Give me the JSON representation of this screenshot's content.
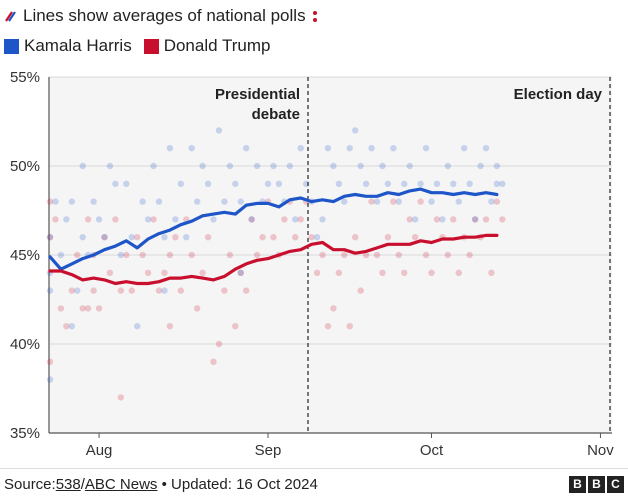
{
  "header": {
    "title": "Lines show averages of national polls"
  },
  "legend": {
    "harris": {
      "label": "Kamala Harris",
      "color": "#1e55c8"
    },
    "trump": {
      "label": "Donald Trump",
      "color": "#c8102e"
    }
  },
  "chart_data": {
    "type": "line",
    "title": "Lines show averages of national polls",
    "xlabel": "",
    "ylabel": "",
    "x_range_days": [
      0,
      102
    ],
    "x_ticks": [
      {
        "label": "Aug",
        "day": 9
      },
      {
        "label": "Sep",
        "day": 40
      },
      {
        "label": "Oct",
        "day": 70
      },
      {
        "label": "Nov",
        "day": 101
      }
    ],
    "ylim": [
      35,
      55
    ],
    "y_ticks": [
      "35%",
      "40%",
      "45%",
      "50%",
      "55%"
    ],
    "y_tick_values": [
      35,
      40,
      45,
      50,
      55
    ],
    "annotations": [
      {
        "label": "Presidential debate",
        "line1": "Presidential",
        "line2": "debate",
        "day": 49
      },
      {
        "label": "Election day",
        "line1": "Election day",
        "day": 105
      }
    ],
    "series": [
      {
        "name": "Kamala Harris",
        "color": "#1e55c8",
        "x": [
          0,
          2,
          4,
          6,
          8,
          10,
          12,
          14,
          16,
          18,
          20,
          22,
          24,
          26,
          28,
          30,
          32,
          34,
          36,
          38,
          40,
          42,
          44,
          46,
          48,
          50,
          52,
          54,
          56,
          58,
          60,
          62,
          64,
          66,
          68,
          70,
          72,
          74,
          76,
          78,
          80,
          82
        ],
        "values": [
          44.9,
          44.2,
          44.5,
          44.8,
          45.0,
          45.3,
          45.5,
          45.8,
          45.4,
          45.9,
          46.2,
          46.4,
          46.7,
          46.9,
          47.2,
          47.3,
          47.4,
          47.3,
          47.8,
          47.9,
          47.9,
          47.7,
          48.1,
          48.2,
          48.0,
          48.1,
          48.0,
          48.3,
          48.4,
          48.3,
          48.3,
          48.5,
          48.4,
          48.6,
          48.7,
          48.5,
          48.5,
          48.4,
          48.5,
          48.4,
          48.5,
          48.4
        ]
      },
      {
        "name": "Donald Trump",
        "color": "#c8102e",
        "x": [
          0,
          2,
          4,
          6,
          8,
          10,
          12,
          14,
          16,
          18,
          20,
          22,
          24,
          26,
          28,
          30,
          32,
          34,
          36,
          38,
          40,
          42,
          44,
          46,
          48,
          50,
          52,
          54,
          56,
          58,
          60,
          62,
          64,
          66,
          68,
          70,
          72,
          74,
          76,
          78,
          80,
          82
        ],
        "values": [
          44.1,
          44.1,
          43.9,
          43.6,
          43.7,
          43.6,
          43.4,
          43.5,
          43.4,
          43.4,
          43.5,
          43.7,
          43.7,
          43.8,
          43.7,
          43.6,
          43.8,
          44.2,
          44.5,
          44.7,
          44.8,
          45.0,
          45.2,
          45.3,
          45.6,
          45.7,
          45.3,
          45.3,
          45.1,
          45.2,
          45.4,
          45.6,
          45.6,
          45.6,
          45.8,
          45.7,
          45.9,
          45.9,
          46.0,
          46.0,
          46.1,
          46.1
        ]
      }
    ],
    "polls": {
      "harris": [
        [
          0,
          46
        ],
        [
          0,
          44
        ],
        [
          0,
          43
        ],
        [
          0,
          38
        ],
        [
          1,
          48
        ],
        [
          2,
          45
        ],
        [
          3,
          47
        ],
        [
          4,
          48
        ],
        [
          4,
          41
        ],
        [
          5,
          43
        ],
        [
          6,
          50
        ],
        [
          6,
          46
        ],
        [
          7,
          45
        ],
        [
          8,
          48
        ],
        [
          9,
          47
        ],
        [
          10,
          46
        ],
        [
          11,
          50
        ],
        [
          12,
          49
        ],
        [
          13,
          45
        ],
        [
          14,
          49
        ],
        [
          15,
          46
        ],
        [
          16,
          41
        ],
        [
          17,
          48
        ],
        [
          18,
          47
        ],
        [
          19,
          50
        ],
        [
          20,
          48
        ],
        [
          21,
          46
        ],
        [
          21,
          43
        ],
        [
          22,
          51
        ],
        [
          23,
          47
        ],
        [
          24,
          49
        ],
        [
          25,
          46
        ],
        [
          26,
          51
        ],
        [
          27,
          48
        ],
        [
          28,
          50
        ],
        [
          29,
          49
        ],
        [
          30,
          47
        ],
        [
          31,
          52
        ],
        [
          32,
          48
        ],
        [
          33,
          50
        ],
        [
          34,
          49
        ],
        [
          35,
          48
        ],
        [
          35,
          44
        ],
        [
          36,
          51
        ],
        [
          37,
          47
        ],
        [
          38,
          50
        ],
        [
          39,
          48
        ],
        [
          40,
          49
        ],
        [
          41,
          50
        ],
        [
          42,
          49
        ],
        [
          43,
          48
        ],
        [
          44,
          50
        ],
        [
          45,
          47
        ],
        [
          46,
          51
        ],
        [
          47,
          49
        ],
        [
          48,
          48
        ],
        [
          49,
          46
        ],
        [
          50,
          47
        ],
        [
          51,
          51
        ],
        [
          52,
          50
        ],
        [
          53,
          49
        ],
        [
          54,
          48
        ],
        [
          55,
          51
        ],
        [
          56,
          52
        ],
        [
          57,
          50
        ],
        [
          58,
          49
        ],
        [
          59,
          51
        ],
        [
          60,
          48
        ],
        [
          61,
          50
        ],
        [
          62,
          49
        ],
        [
          63,
          51
        ],
        [
          64,
          48
        ],
        [
          65,
          49
        ],
        [
          66,
          50
        ],
        [
          67,
          47
        ],
        [
          68,
          49
        ],
        [
          69,
          51
        ],
        [
          70,
          48
        ],
        [
          71,
          49
        ],
        [
          72,
          47
        ],
        [
          73,
          50
        ],
        [
          74,
          49
        ],
        [
          75,
          48
        ],
        [
          76,
          51
        ],
        [
          77,
          49
        ],
        [
          78,
          47
        ],
        [
          79,
          50
        ],
        [
          80,
          51
        ],
        [
          81,
          48
        ],
        [
          82,
          49
        ],
        [
          82,
          50
        ],
        [
          83,
          49
        ]
      ],
      "trump": [
        [
          0,
          48
        ],
        [
          0,
          46
        ],
        [
          0,
          39
        ],
        [
          1,
          47
        ],
        [
          2,
          42
        ],
        [
          3,
          41
        ],
        [
          4,
          43
        ],
        [
          5,
          45
        ],
        [
          6,
          42
        ],
        [
          7,
          42
        ],
        [
          7,
          47
        ],
        [
          8,
          43
        ],
        [
          8,
          45
        ],
        [
          9,
          42
        ],
        [
          10,
          46
        ],
        [
          11,
          44
        ],
        [
          12,
          47
        ],
        [
          13,
          43
        ],
        [
          13,
          37
        ],
        [
          14,
          45
        ],
        [
          15,
          43
        ],
        [
          16,
          46
        ],
        [
          17,
          45
        ],
        [
          18,
          44
        ],
        [
          19,
          47
        ],
        [
          20,
          43
        ],
        [
          21,
          44
        ],
        [
          22,
          45
        ],
        [
          22,
          41
        ],
        [
          23,
          46
        ],
        [
          24,
          43
        ],
        [
          25,
          47
        ],
        [
          26,
          45
        ],
        [
          27,
          42
        ],
        [
          28,
          44
        ],
        [
          29,
          46
        ],
        [
          30,
          39
        ],
        [
          31,
          40
        ],
        [
          32,
          43
        ],
        [
          33,
          45
        ],
        [
          34,
          41
        ],
        [
          35,
          44
        ],
        [
          36,
          43
        ],
        [
          37,
          47
        ],
        [
          38,
          45
        ],
        [
          39,
          46
        ],
        [
          40,
          48
        ],
        [
          41,
          46
        ],
        [
          42,
          45
        ],
        [
          43,
          47
        ],
        [
          44,
          48
        ],
        [
          45,
          46
        ],
        [
          46,
          47
        ],
        [
          47,
          48
        ],
        [
          48,
          46
        ],
        [
          49,
          44
        ],
        [
          50,
          45
        ],
        [
          51,
          41
        ],
        [
          52,
          42
        ],
        [
          53,
          44
        ],
        [
          54,
          45
        ],
        [
          55,
          41
        ],
        [
          56,
          46
        ],
        [
          57,
          43
        ],
        [
          58,
          45
        ],
        [
          59,
          48
        ],
        [
          60,
          45
        ],
        [
          61,
          44
        ],
        [
          62,
          46
        ],
        [
          63,
          48
        ],
        [
          64,
          45
        ],
        [
          65,
          44
        ],
        [
          66,
          47
        ],
        [
          67,
          46
        ],
        [
          68,
          48
        ],
        [
          69,
          45
        ],
        [
          70,
          44
        ],
        [
          71,
          47
        ],
        [
          72,
          46
        ],
        [
          73,
          45
        ],
        [
          74,
          47
        ],
        [
          75,
          44
        ],
        [
          76,
          46
        ],
        [
          77,
          45
        ],
        [
          78,
          47
        ],
        [
          79,
          46
        ],
        [
          80,
          47
        ],
        [
          81,
          44
        ],
        [
          82,
          48
        ],
        [
          83,
          47
        ]
      ]
    }
  },
  "footer": {
    "source_prefix": "Source: ",
    "source_link1": "538",
    "source_sep": "/",
    "source_link2": "ABC News",
    "updated": " • Updated: 16 Oct 2024",
    "logo": [
      "B",
      "B",
      "C"
    ]
  }
}
